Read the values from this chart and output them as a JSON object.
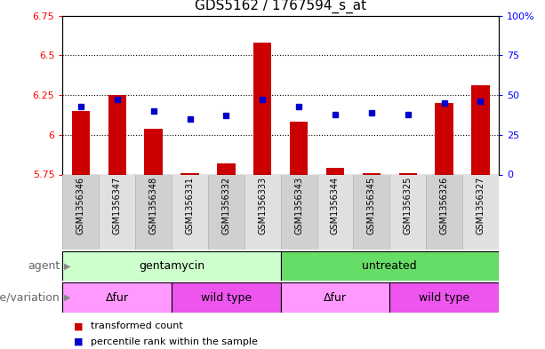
{
  "title": "GDS5162 / 1767594_s_at",
  "samples": [
    "GSM1356346",
    "GSM1356347",
    "GSM1356348",
    "GSM1356331",
    "GSM1356332",
    "GSM1356333",
    "GSM1356343",
    "GSM1356344",
    "GSM1356345",
    "GSM1356325",
    "GSM1356326",
    "GSM1356327"
  ],
  "red_values": [
    6.15,
    6.25,
    6.04,
    5.76,
    5.82,
    6.58,
    6.08,
    5.79,
    5.76,
    5.76,
    6.2,
    6.31
  ],
  "blue_values": [
    6.18,
    6.22,
    6.15,
    6.1,
    6.12,
    6.22,
    6.18,
    6.13,
    6.14,
    6.13,
    6.2,
    6.21
  ],
  "ylim_left": [
    5.75,
    6.75
  ],
  "ylim_right": [
    0,
    100
  ],
  "yticks_left": [
    5.75,
    6.0,
    6.25,
    6.5,
    6.75
  ],
  "yticks_right": [
    0,
    25,
    50,
    75,
    100
  ],
  "ytick_labels_left": [
    "5.75",
    "6",
    "6.25",
    "6.5",
    "6.75"
  ],
  "ytick_labels_right": [
    "0",
    "25",
    "50",
    "75",
    "100%"
  ],
  "hlines": [
    6.0,
    6.25,
    6.5
  ],
  "bar_color": "#cc0000",
  "marker_color": "#0000cc",
  "bar_bottom": 5.75,
  "agent_groups": [
    {
      "label": "gentamycin",
      "start": 0,
      "end": 6,
      "color": "#ccffcc"
    },
    {
      "label": "untreated",
      "start": 6,
      "end": 12,
      "color": "#66dd66"
    }
  ],
  "genotype_groups": [
    {
      "label": "Δfur",
      "start": 0,
      "end": 3,
      "color": "#ff99ff"
    },
    {
      "label": "wild type",
      "start": 3,
      "end": 6,
      "color": "#ee55ee"
    },
    {
      "label": "Δfur",
      "start": 6,
      "end": 9,
      "color": "#ff99ff"
    },
    {
      "label": "wild type",
      "start": 9,
      "end": 12,
      "color": "#ee55ee"
    }
  ],
  "legend_items": [
    {
      "color": "#cc0000",
      "label": "transformed count"
    },
    {
      "color": "#0000cc",
      "label": "percentile rank within the sample"
    }
  ],
  "tick_fontsize": 8,
  "label_fontsize": 9,
  "sample_fontsize": 7,
  "title_fontsize": 11
}
